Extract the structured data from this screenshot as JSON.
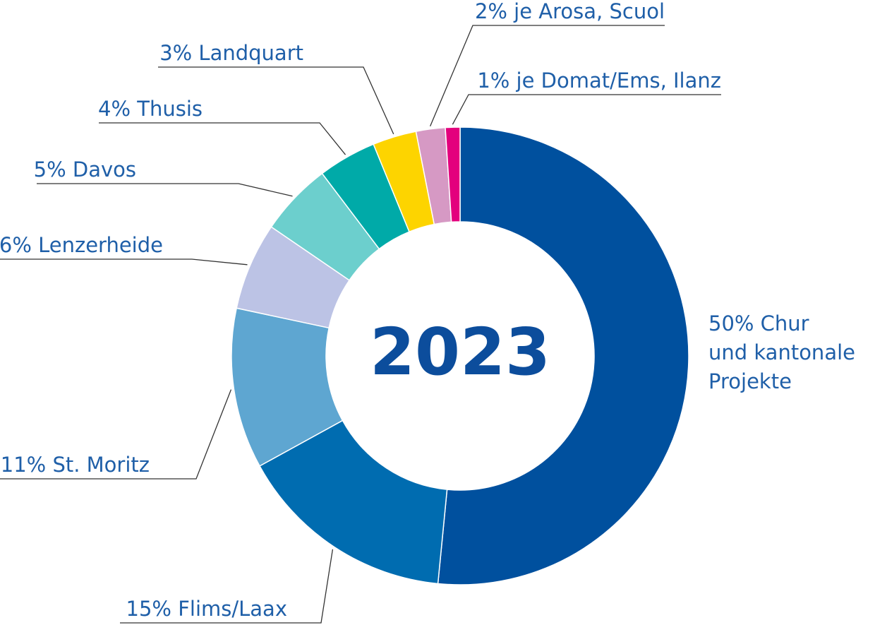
{
  "chart_data": {
    "type": "pie",
    "center_label": "2023",
    "slices": [
      {
        "label": "50% Chur und kantonale Projekte",
        "lines": [
          "50% Chur",
          "und kantonale",
          "Projekte"
        ],
        "value": 50,
        "color": "#00509e"
      },
      {
        "label": "15% Flims/Laax",
        "lines": [
          "15% Flims/Laax"
        ],
        "value": 15,
        "color": "#006cb0"
      },
      {
        "label": "11% St. Moritz",
        "lines": [
          "11% St. Moritz"
        ],
        "value": 11,
        "color": "#5ea6d1"
      },
      {
        "label": "6% Lenzerheide",
        "lines": [
          "6% Lenzerheide"
        ],
        "value": 6,
        "color": "#bcc3e5"
      },
      {
        "label": "5% Davos",
        "lines": [
          "5% Davos"
        ],
        "value": 5,
        "color": "#6ccfcd"
      },
      {
        "label": "4% Thusis",
        "lines": [
          "4% Thusis"
        ],
        "value": 4,
        "color": "#00aaa8"
      },
      {
        "label": "3% Landquart",
        "lines": [
          "3% Landquart"
        ],
        "value": 3,
        "color": "#fdd400"
      },
      {
        "label": "2% je Arosa, Scuol",
        "lines": [
          "2% je Arosa, Scuol"
        ],
        "value": 2,
        "color": "#d699c4"
      },
      {
        "label": "1% je Domat/Ems, Ilanz",
        "lines": [
          "1% je Domat/Ems, Ilanz"
        ],
        "value": 1,
        "color": "#e3007d"
      }
    ]
  }
}
